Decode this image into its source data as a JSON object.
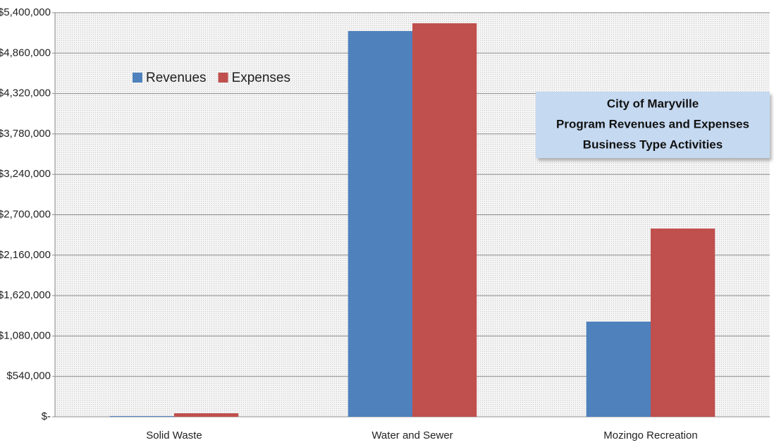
{
  "chart_data": {
    "type": "bar",
    "title": [
      "City of Maryville",
      "Program Revenues and Expenses",
      "Business Type Activities"
    ],
    "categories": [
      "Solid Waste",
      "Water and Sewer",
      "Mozingo Recreation"
    ],
    "series": [
      {
        "name": "Revenues",
        "color": "#4f81bd",
        "values": [
          10000,
          5155000,
          1272000
        ]
      },
      {
        "name": "Expenses",
        "color": "#c0504d",
        "values": [
          47000,
          5259000,
          2516000
        ]
      }
    ],
    "ylim": [
      0,
      5400000
    ],
    "yticks": [
      {
        "value": 0,
        "label": "$-"
      },
      {
        "value": 540000,
        "label": "$540,000"
      },
      {
        "value": 1080000,
        "label": "$1,080,000"
      },
      {
        "value": 1620000,
        "label": "$1,620,000"
      },
      {
        "value": 2160000,
        "label": "$2,160,000"
      },
      {
        "value": 2700000,
        "label": "$2,700,000"
      },
      {
        "value": 3240000,
        "label": "$3,240,000"
      },
      {
        "value": 3780000,
        "label": "$3,780,000"
      },
      {
        "value": 4320000,
        "label": "$4,320,000"
      },
      {
        "value": 4860000,
        "label": "$4,860,000"
      },
      {
        "value": 5400000,
        "label": "$5,400,000"
      }
    ],
    "grid": true,
    "legend": "top-left"
  }
}
